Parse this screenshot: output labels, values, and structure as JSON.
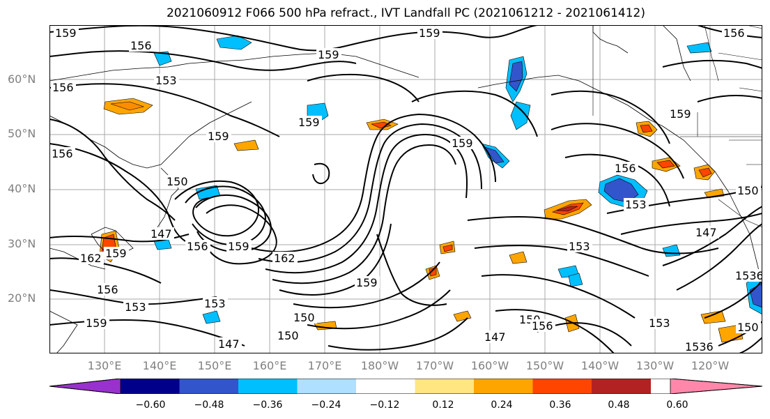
{
  "title": "2021060912 F066 500 hPa refract., IVT Landfall PC (2021061212 - 2021061412)",
  "lat_labels": [
    "60°N",
    "50°N",
    "40°N",
    "30°N",
    "20°N"
  ],
  "lon_labels": [
    "130°E",
    "140°E",
    "150°E",
    "160°E",
    "170°E",
    "180°W",
    "170°W",
    "160°W",
    "150°W",
    "140°W",
    "130°W",
    "120°W"
  ],
  "contour_labels": [
    "159",
    "156",
    "153",
    "156",
    "159",
    "159",
    "156",
    "159",
    "159",
    "159",
    "159",
    "156",
    "150",
    "147",
    "156",
    "159",
    "162",
    "153",
    "159",
    "162",
    "159",
    "156",
    "153",
    "150",
    "147",
    "150",
    "159",
    "153",
    "153",
    "150",
    "156",
    "147",
    "153",
    "150",
    "1536",
    "1536",
    "150",
    "147",
    "156"
  ],
  "colorbar": {
    "colors": [
      "#9932cc",
      "#00008b",
      "#3355cc",
      "#00bfff",
      "#b0e0ff",
      "#ffffff",
      "#ffe680",
      "#ffa500",
      "#ff4500",
      "#b22222",
      "#ff88aa"
    ],
    "tick_labels": [
      "−0.60",
      "−0.48",
      "−0.36",
      "−0.24",
      "−0.12",
      "0.12",
      "0.24",
      "0.36",
      "0.48",
      "0.60"
    ]
  },
  "style": {
    "grid_color": "#aaaaaa",
    "contour_color": "#000000",
    "coast_color": "#000000"
  }
}
